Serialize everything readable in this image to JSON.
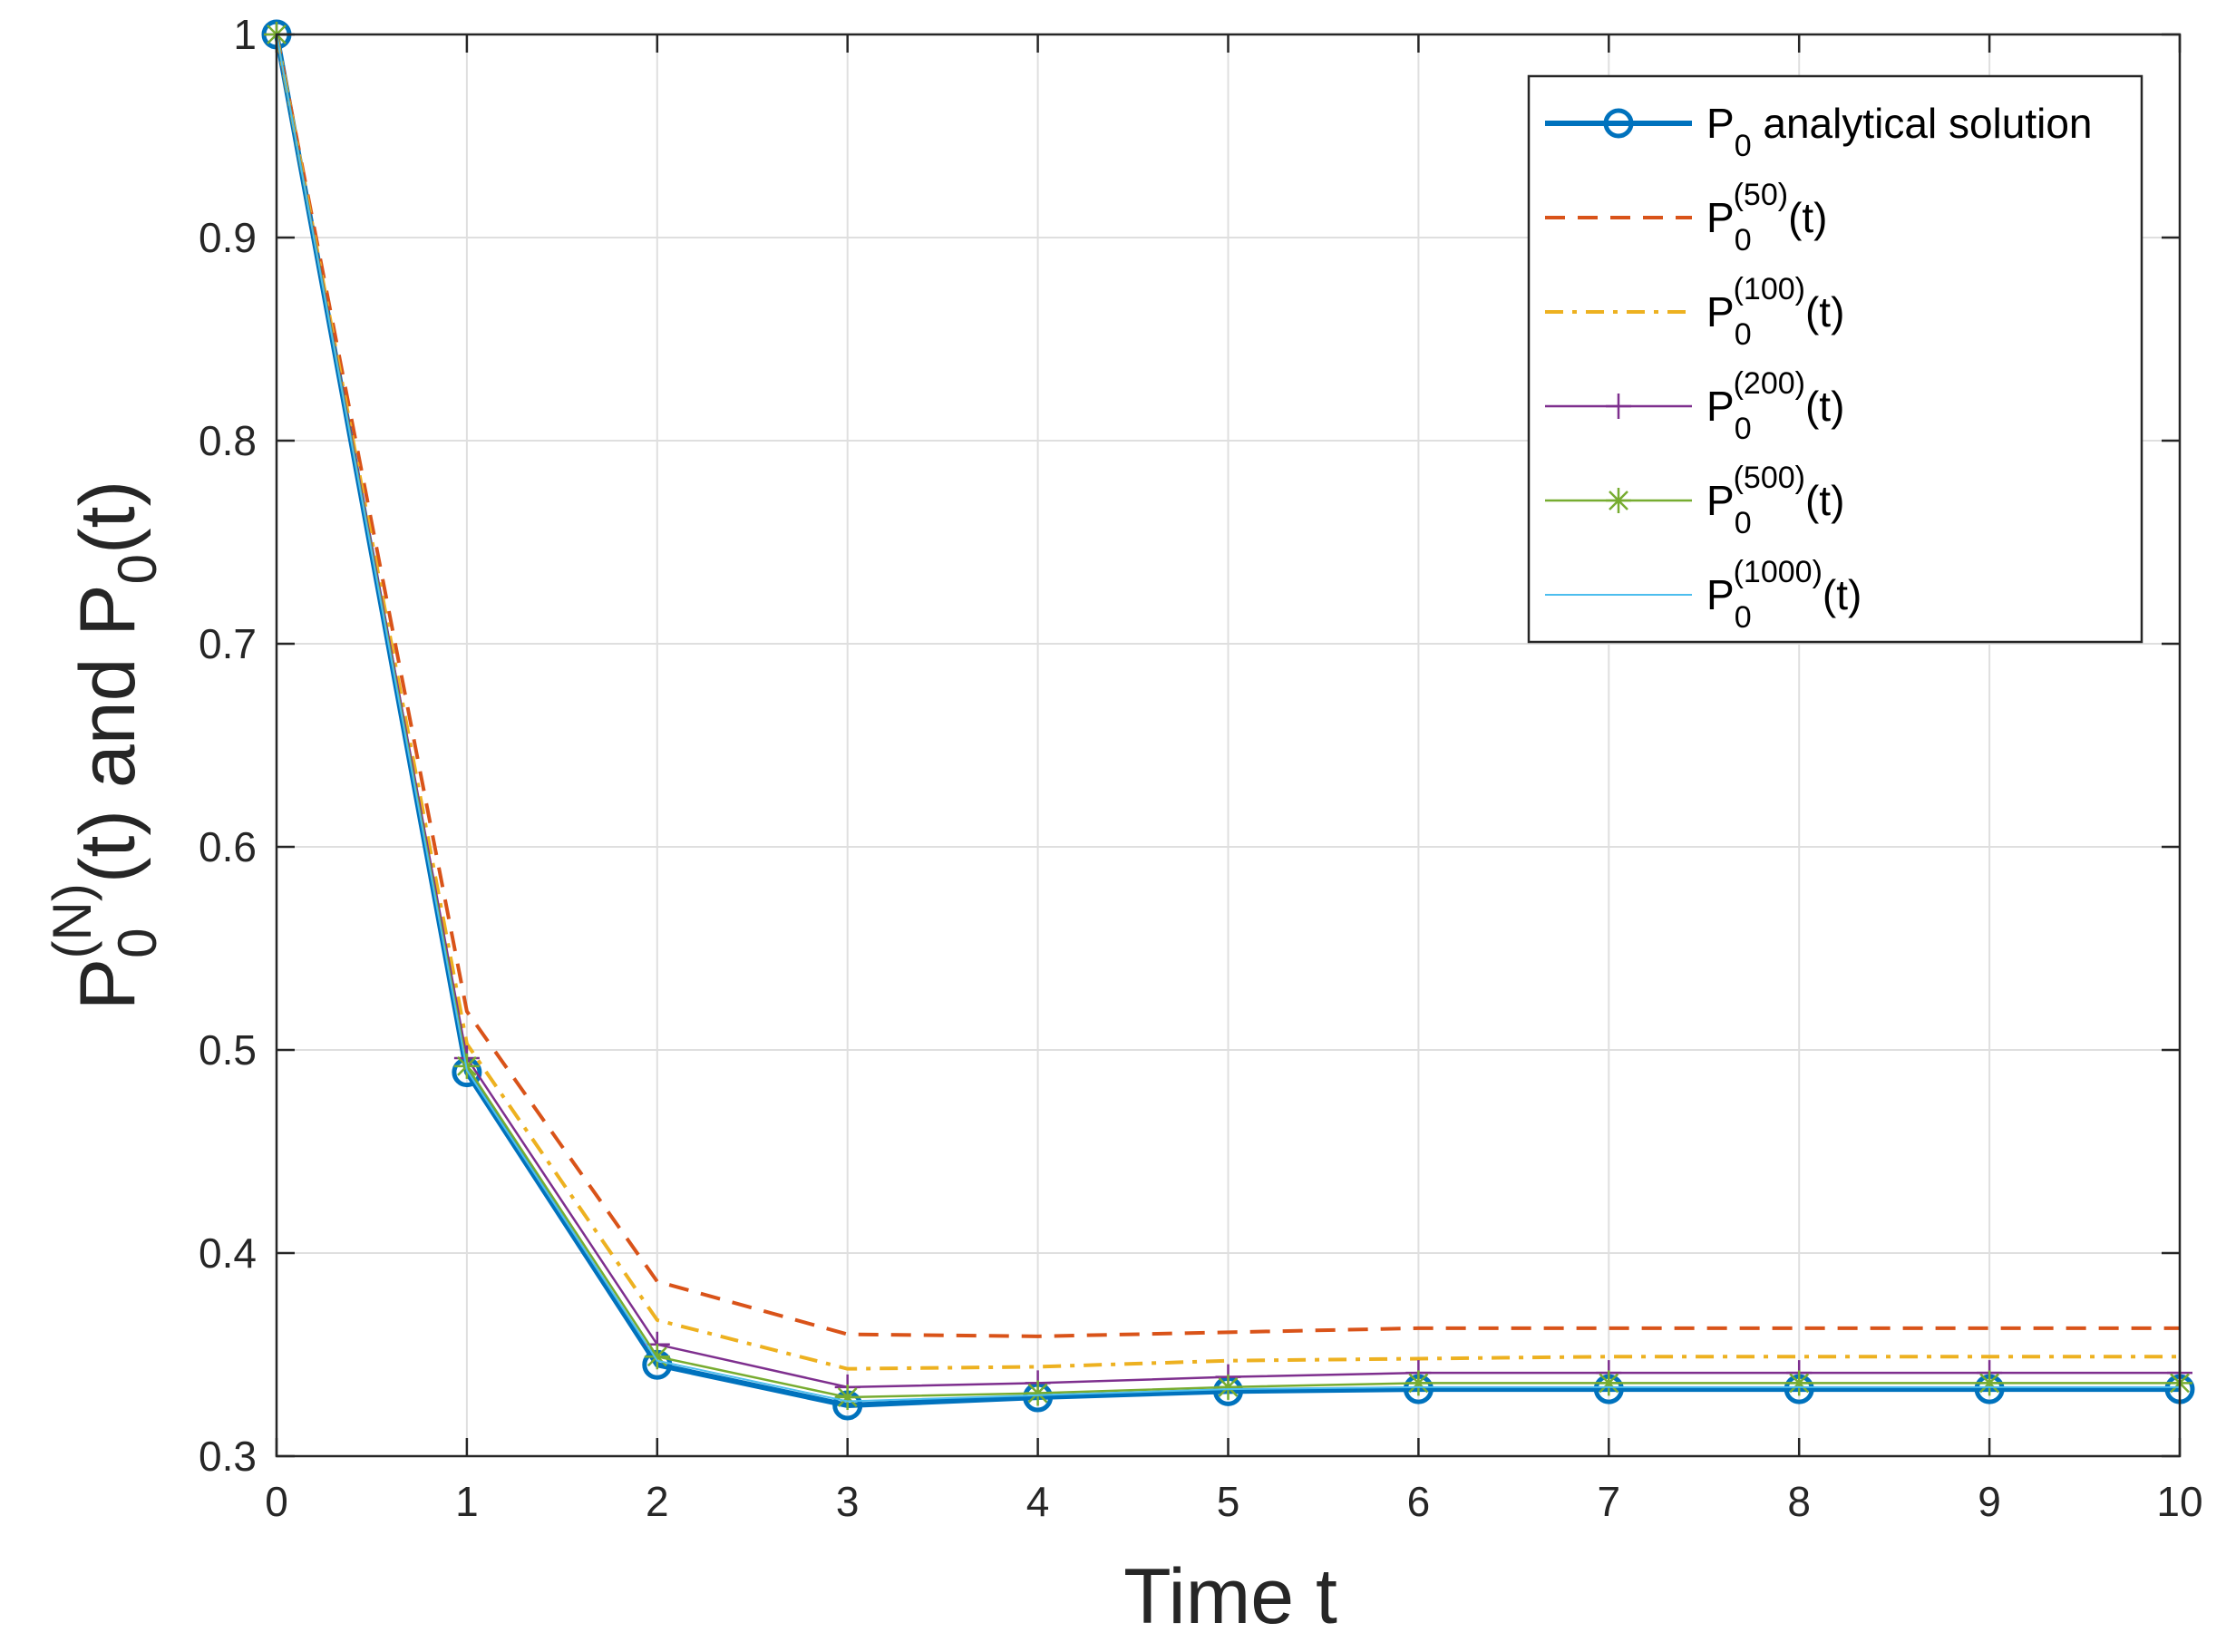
{
  "chart_data": {
    "type": "line",
    "title": "",
    "xlabel": "Time t",
    "ylabel": {
      "base": "P",
      "sub1": "0",
      "sup1": "(N)",
      "mid": "(t) and P",
      "sub2": "0",
      "tail": "(t)"
    },
    "xlim": [
      0,
      10
    ],
    "ylim": [
      0.3,
      1
    ],
    "xticks": [
      0,
      1,
      2,
      3,
      4,
      5,
      6,
      7,
      8,
      9,
      10
    ],
    "yticks": [
      0.3,
      0.4,
      0.5,
      0.6,
      0.7,
      0.8,
      0.9,
      1
    ],
    "x_tick_labels": [
      "0",
      "1",
      "2",
      "3",
      "4",
      "5",
      "6",
      "7",
      "8",
      "9",
      "10"
    ],
    "y_tick_labels": [
      "0.3",
      "0.4",
      "0.5",
      "0.6",
      "0.7",
      "0.8",
      "0.9",
      "1"
    ],
    "grid": true,
    "legend_position": "top-right",
    "x": [
      0,
      1,
      2,
      3,
      4,
      5,
      6,
      7,
      8,
      9,
      10
    ],
    "series": [
      {
        "name": "P0 analytical solution",
        "label": {
          "base": "P",
          "sub": "0",
          "sup": "",
          "tail": " analytical solution"
        },
        "values": [
          1.0,
          0.489,
          0.345,
          0.325,
          0.329,
          0.332,
          0.333,
          0.333,
          0.333,
          0.333,
          0.333
        ],
        "color": "#0072BD",
        "line": "solid",
        "width": 6,
        "marker": "circle"
      },
      {
        "name": "P0(50)(t)",
        "label": {
          "base": "P",
          "sub": "0",
          "sup": "(50)",
          "tail": "(t)"
        },
        "values": [
          1.0,
          0.519,
          0.386,
          0.36,
          0.359,
          0.361,
          0.363,
          0.363,
          0.363,
          0.363,
          0.363
        ],
        "color": "#D95319",
        "line": "dashed",
        "width": 4,
        "marker": "none"
      },
      {
        "name": "P0(100)(t)",
        "label": {
          "base": "P",
          "sub": "0",
          "sup": "(100)",
          "tail": "(t)"
        },
        "values": [
          1.0,
          0.503,
          0.367,
          0.343,
          0.344,
          0.347,
          0.348,
          0.349,
          0.349,
          0.349,
          0.349
        ],
        "color": "#EDB120",
        "line": "dashdot",
        "width": 4,
        "marker": "none"
      },
      {
        "name": "P0(200)(t)",
        "label": {
          "base": "P",
          "sub": "0",
          "sup": "(200)",
          "tail": "(t)"
        },
        "values": [
          1.0,
          0.496,
          0.355,
          0.334,
          0.336,
          0.339,
          0.341,
          0.341,
          0.341,
          0.341,
          0.341
        ],
        "color": "#7E2F8E",
        "line": "solid",
        "width": 2.5,
        "marker": "plus"
      },
      {
        "name": "P0(500)(t)",
        "label": {
          "base": "P",
          "sub": "0",
          "sup": "(500)",
          "tail": "(t)"
        },
        "values": [
          1.0,
          0.492,
          0.349,
          0.329,
          0.331,
          0.334,
          0.336,
          0.336,
          0.336,
          0.336,
          0.336
        ],
        "color": "#77AC30",
        "line": "solid",
        "width": 2.5,
        "marker": "asterisk"
      },
      {
        "name": "P0(1000)(t)",
        "label": {
          "base": "P",
          "sub": "0",
          "sup": "(1000)",
          "tail": "(t)"
        },
        "values": [
          1.0,
          0.49,
          0.347,
          0.327,
          0.33,
          0.333,
          0.334,
          0.334,
          0.334,
          0.334,
          0.334
        ],
        "color": "#4DBEEE",
        "line": "solid",
        "width": 2,
        "marker": "none"
      }
    ]
  }
}
